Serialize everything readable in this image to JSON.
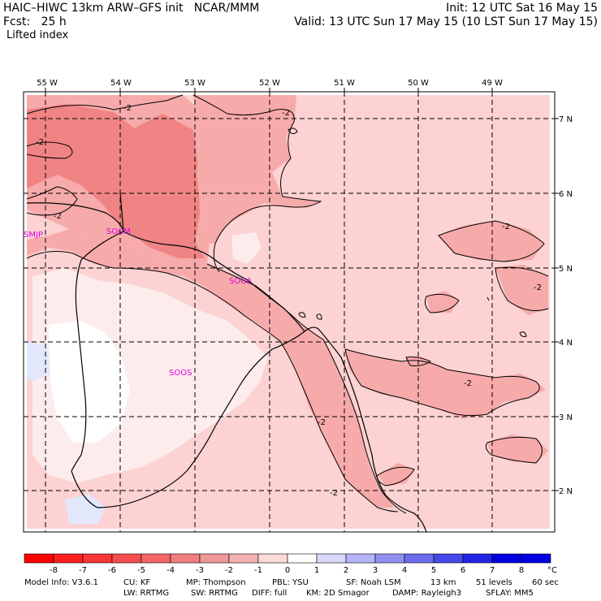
{
  "header": {
    "line1_left": "HAIC–HIWC 13km ARW–GFS init   NCAR/MMM",
    "line1_right": "Init: 12 UTC Sat 16 May 15",
    "line2_left": "Fcst:   25 h",
    "line2_right": "Valid: 13 UTC Sun 17 May 15 (10 LST Sun 17 May 15)",
    "line3_left": "Lifted index"
  },
  "map": {
    "lon_labels": [
      "55 W",
      "54 W",
      "53 W",
      "52 W",
      "51 W",
      "50 W",
      "49 W"
    ],
    "lat_labels": [
      "7 N",
      "6 N",
      "5 N",
      "4 N",
      "3 N",
      "2 N"
    ],
    "station_labels": [
      "SMJP",
      "SOCM",
      "SOCA",
      "SOOS"
    ],
    "contour_labels": [
      "-2",
      "-2",
      "-2",
      "-2",
      "-2",
      "-2",
      "-2",
      "-2",
      "-2"
    ],
    "colors": {
      "base": "#fcd2d2",
      "moderate": "#f7aaaa",
      "strong": "#f08383",
      "near_zero": "#fdecec",
      "positive": "#e3e7fb",
      "station": "#e000e0"
    }
  },
  "colorbar": {
    "labels": [
      "-8",
      "-7",
      "-6",
      "-5",
      "-4",
      "-3",
      "-2",
      "-1",
      "0",
      "1",
      "2",
      "3",
      "4",
      "5",
      "6",
      "7",
      "8"
    ],
    "unit": "°C",
    "colors": [
      "#ff0000",
      "#fa1f1f",
      "#f73636",
      "#f44e4e",
      "#f26666",
      "#f07e7e",
      "#f09797",
      "#f4b2b2",
      "#fbdada",
      "#ffffff",
      "#d8d8fb",
      "#b4b4f6",
      "#9090f2",
      "#6c6cee",
      "#4848ea",
      "#2424e6",
      "#0000e2",
      "#0000e2"
    ]
  },
  "footer": {
    "line1": [
      "Model Info: V3.6.1",
      "CU: KF",
      "MP: Thompson",
      "PBL: YSU",
      "SF: Noah LSM",
      "13 km",
      "51 levels",
      "60 sec"
    ],
    "line2": [
      "LW: RRTMG",
      "SW: RRTMG",
      "DIFF: full",
      "KM: 2D Smagor",
      "DAMP: Rayleigh3",
      "SFLAY: MM5"
    ]
  }
}
